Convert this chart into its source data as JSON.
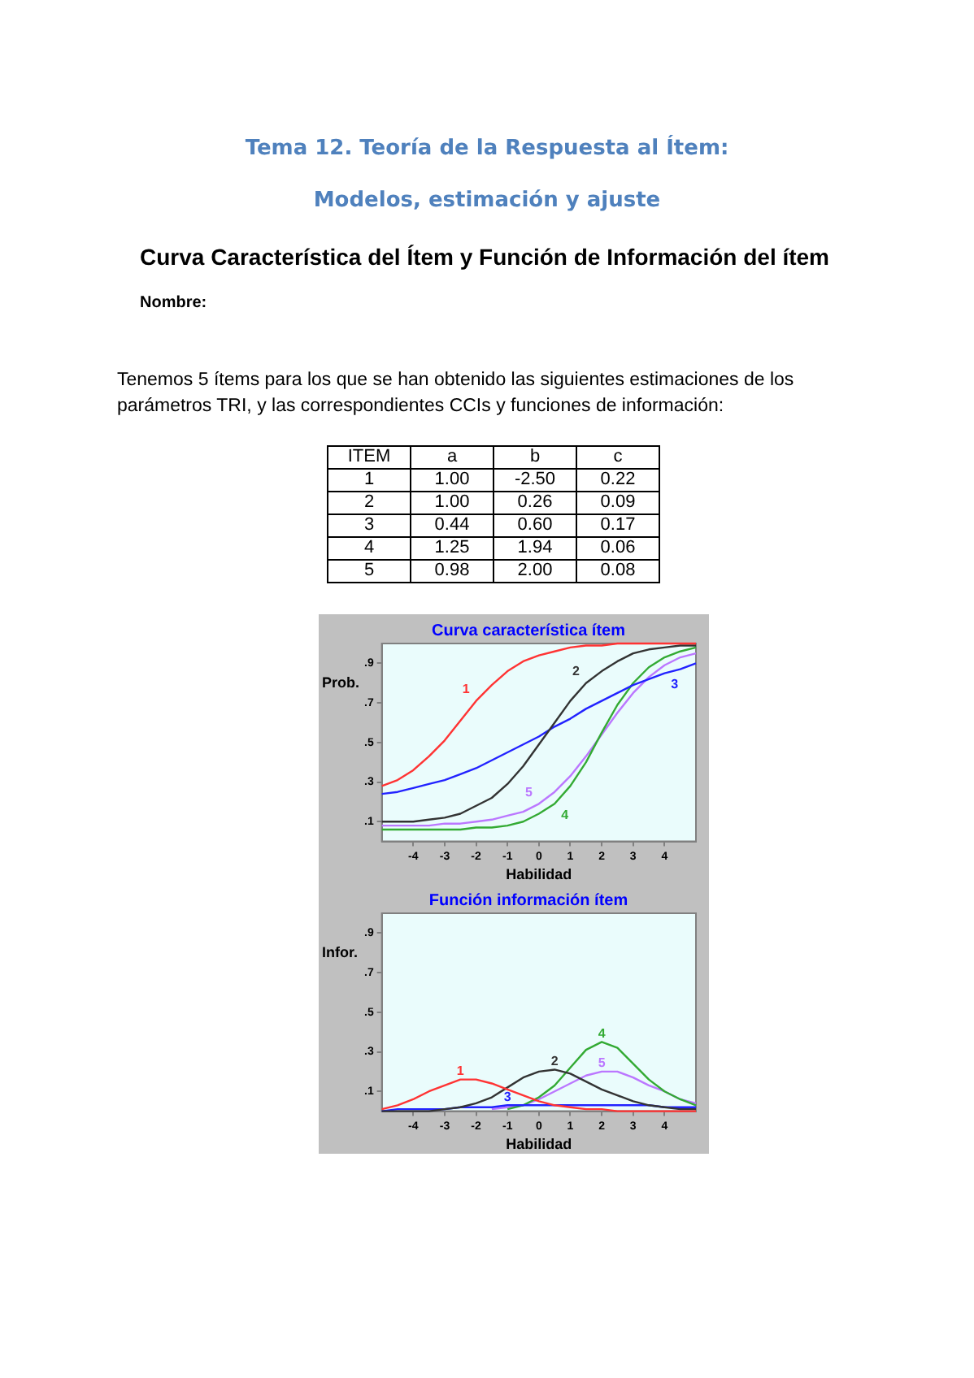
{
  "chart_data": [
    {
      "type": "line",
      "title": "Curva característica ítem",
      "xlabel": "Habilidad",
      "ylabel": "Prob.",
      "xlim": [
        -5,
        5
      ],
      "ylim": [
        0,
        1
      ],
      "xticks": [
        -4,
        -3,
        -2,
        -1,
        0,
        1,
        2,
        3,
        4
      ],
      "yticks": [
        {
          "value": 0.1,
          "label": ".1"
        },
        {
          "value": 0.3,
          "label": ".3"
        },
        {
          "value": 0.5,
          "label": ".5"
        },
        {
          "value": 0.7,
          "label": ".7"
        },
        {
          "value": 0.9,
          "label": ".9"
        }
      ],
      "grid": false,
      "legend": false,
      "marker": "none",
      "line_style": "solid",
      "x": [
        -5,
        -4.5,
        -4,
        -3.5,
        -3,
        -2.5,
        -2,
        -1.5,
        -1,
        -0.5,
        0,
        0.5,
        1,
        1.5,
        2,
        2.5,
        3,
        3.5,
        4,
        4.5,
        5
      ],
      "series": [
        {
          "name": "1",
          "color": "#ff3333",
          "values": [
            0.28,
            0.31,
            0.36,
            0.43,
            0.51,
            0.61,
            0.71,
            0.79,
            0.86,
            0.91,
            0.94,
            0.96,
            0.98,
            0.99,
            0.99,
            1.0,
            1.0,
            1.0,
            1.0,
            1.0,
            1.0
          ]
        },
        {
          "name": "2",
          "color": "#333333",
          "values": [
            0.1,
            0.1,
            0.1,
            0.11,
            0.12,
            0.14,
            0.18,
            0.22,
            0.29,
            0.38,
            0.49,
            0.6,
            0.71,
            0.8,
            0.86,
            0.91,
            0.95,
            0.97,
            0.98,
            0.99,
            0.99
          ]
        },
        {
          "name": "3",
          "color": "#2222ff",
          "values": [
            0.24,
            0.25,
            0.27,
            0.29,
            0.31,
            0.34,
            0.37,
            0.41,
            0.45,
            0.49,
            0.53,
            0.58,
            0.62,
            0.67,
            0.71,
            0.75,
            0.79,
            0.82,
            0.85,
            0.87,
            0.9
          ]
        },
        {
          "name": "4",
          "color": "#33aa33",
          "values": [
            0.06,
            0.06,
            0.06,
            0.06,
            0.06,
            0.06,
            0.07,
            0.07,
            0.08,
            0.1,
            0.14,
            0.19,
            0.28,
            0.4,
            0.55,
            0.69,
            0.8,
            0.88,
            0.93,
            0.96,
            0.98
          ]
        },
        {
          "name": "5",
          "color": "#bb77ff",
          "values": [
            0.08,
            0.08,
            0.08,
            0.08,
            0.09,
            0.09,
            0.1,
            0.11,
            0.13,
            0.15,
            0.19,
            0.25,
            0.33,
            0.43,
            0.54,
            0.65,
            0.75,
            0.83,
            0.89,
            0.93,
            0.95
          ]
        }
      ],
      "annotations": [
        "Tema 12. Teoría de la Respuesta al Ítem:",
        "Modelos, estimación y ajuste",
        "Curva Característica del Ítem y Función de Información del ítem",
        "Nombre:",
        "Tenemos 5 ítems para los que se han obtenido las siguientes estimaciones de los parámetros TRI, y las correspondientes CCIs y funciones de información:",
        "ITEM",
        "a",
        "b",
        "c",
        "1",
        "1.00",
        "-2.50",
        "0.22",
        "2",
        "1.00",
        "0.26",
        "0.09",
        "3",
        "0.44",
        "0.60",
        "0.17",
        "4",
        "1.25",
        "1.94",
        "0.06",
        "5",
        "0.98",
        "2.00",
        "0.08"
      ]
    },
    {
      "type": "line",
      "title": "Función información ítem",
      "xlabel": "Habilidad",
      "ylabel": "Infor.",
      "xlim": [
        -5,
        5
      ],
      "ylim": [
        0,
        1
      ],
      "xticks": [
        -4,
        -3,
        -2,
        -1,
        0,
        1,
        2,
        3,
        4
      ],
      "yticks": [
        {
          "value": 0.1,
          "label": ".1"
        },
        {
          "value": 0.3,
          "label": ".3"
        },
        {
          "value": 0.5,
          "label": ".5"
        },
        {
          "value": 0.7,
          "label": ".7"
        },
        {
          "value": 0.9,
          "label": ".9"
        }
      ],
      "grid": false,
      "legend": false,
      "marker": "none",
      "line_style": "solid",
      "x": [
        -5,
        -4.5,
        -4,
        -3.5,
        -3,
        -2.5,
        -2,
        -1.5,
        -1,
        -0.5,
        0,
        0.5,
        1,
        1.5,
        2,
        2.5,
        3,
        3.5,
        4,
        4.5,
        5
      ],
      "series": [
        {
          "name": "1",
          "color": "#ff3333",
          "values": [
            0.01,
            0.03,
            0.06,
            0.1,
            0.13,
            0.16,
            0.16,
            0.14,
            0.11,
            0.08,
            0.05,
            0.03,
            0.02,
            0.01,
            0.01,
            0,
            0,
            0,
            0,
            0,
            0
          ]
        },
        {
          "name": "2",
          "color": "#333333",
          "values": [
            0,
            0,
            0,
            0,
            0.01,
            0.02,
            0.04,
            0.07,
            0.12,
            0.17,
            0.2,
            0.21,
            0.19,
            0.15,
            0.11,
            0.08,
            0.05,
            0.03,
            0.02,
            0.01,
            0.01
          ]
        },
        {
          "name": "3",
          "color": "#2222ff",
          "values": [
            0,
            0.01,
            0.01,
            0.01,
            0.01,
            0.02,
            0.02,
            0.02,
            0.03,
            0.03,
            0.03,
            0.03,
            0.03,
            0.03,
            0.03,
            0.03,
            0.03,
            0.03,
            0.02,
            0.02,
            0.02
          ]
        },
        {
          "name": "4",
          "color": "#33aa33",
          "values": [
            null,
            null,
            null,
            null,
            null,
            null,
            null,
            null,
            0.01,
            0.03,
            0.07,
            0.13,
            0.22,
            0.31,
            0.35,
            0.32,
            0.24,
            0.16,
            0.1,
            0.06,
            0.03
          ]
        },
        {
          "name": "5",
          "color": "#bb77ff",
          "values": [
            null,
            null,
            null,
            null,
            null,
            null,
            null,
            0.01,
            0.02,
            0.03,
            0.06,
            0.1,
            0.14,
            0.18,
            0.2,
            0.2,
            0.17,
            0.13,
            0.1,
            0.06,
            0.04
          ]
        }
      ]
    }
  ]
}
